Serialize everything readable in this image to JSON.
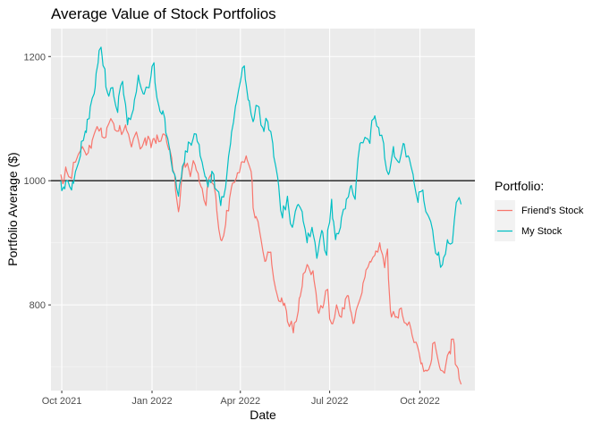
{
  "chart_data": {
    "type": "line",
    "title": "Average Value of Stock Portfolios",
    "xlabel": "Date",
    "ylabel": "Portfolio Average ($)",
    "x_start": "2021-09-30",
    "x_end": "2022-11-12",
    "xlim": [
      "2021-09-20",
      "2022-11-26"
    ],
    "ylim": [
      662,
      1245
    ],
    "x_ticks": [
      {
        "date": "2021-10-01",
        "label": "Oct 2021"
      },
      {
        "date": "2022-01-01",
        "label": "Jan 2022"
      },
      {
        "date": "2022-04-01",
        "label": "Apr 2022"
      },
      {
        "date": "2022-07-01",
        "label": "Jul 2022"
      },
      {
        "date": "2022-10-01",
        "label": "Oct 2022"
      }
    ],
    "y_ticks": [
      800,
      1000,
      1200
    ],
    "y_minor": [
      700,
      900,
      1100
    ],
    "hline": 1000,
    "grid": true,
    "legend": {
      "title": "Portfolio:",
      "position": "right"
    },
    "series": [
      {
        "name": "Friend's Stock",
        "color": "#F8766D",
        "anchors": [
          [
            "2021-09-30",
            1010
          ],
          [
            "2021-10-02",
            995
          ],
          [
            "2021-10-05",
            1022
          ],
          [
            "2021-10-10",
            1005
          ],
          [
            "2021-10-15",
            1030
          ],
          [
            "2021-10-22",
            1055
          ],
          [
            "2021-10-28",
            1045
          ],
          [
            "2021-11-03",
            1075
          ],
          [
            "2021-11-10",
            1085
          ],
          [
            "2021-11-15",
            1070
          ],
          [
            "2021-11-20",
            1100
          ],
          [
            "2021-11-28",
            1080
          ],
          [
            "2021-12-05",
            1090
          ],
          [
            "2021-12-10",
            1060
          ],
          [
            "2021-12-15",
            1075
          ],
          [
            "2021-12-22",
            1055
          ],
          [
            "2021-12-30",
            1065
          ],
          [
            "2022-01-05",
            1060
          ],
          [
            "2022-01-12",
            1075
          ],
          [
            "2022-01-18",
            1050
          ],
          [
            "2022-01-24",
            1010
          ],
          [
            "2022-01-28",
            950
          ],
          [
            "2022-02-03",
            1030
          ],
          [
            "2022-02-08",
            1015
          ],
          [
            "2022-02-14",
            1025
          ],
          [
            "2022-02-20",
            990
          ],
          [
            "2022-02-25",
            960
          ],
          [
            "2022-03-02",
            1010
          ],
          [
            "2022-03-07",
            975
          ],
          [
            "2022-03-12",
            905
          ],
          [
            "2022-03-17",
            930
          ],
          [
            "2022-03-23",
            990
          ],
          [
            "2022-03-28",
            1005
          ],
          [
            "2022-04-02",
            1030
          ],
          [
            "2022-04-07",
            1040
          ],
          [
            "2022-04-12",
            1015
          ],
          [
            "2022-04-16",
            940
          ],
          [
            "2022-04-21",
            915
          ],
          [
            "2022-04-26",
            870
          ],
          [
            "2022-05-02",
            885
          ],
          [
            "2022-05-07",
            825
          ],
          [
            "2022-05-12",
            805
          ],
          [
            "2022-05-18",
            790
          ],
          [
            "2022-05-25",
            755
          ],
          [
            "2022-05-30",
            790
          ],
          [
            "2022-06-03",
            830
          ],
          [
            "2022-06-08",
            865
          ],
          [
            "2022-06-14",
            855
          ],
          [
            "2022-06-19",
            790
          ],
          [
            "2022-06-24",
            795
          ],
          [
            "2022-06-29",
            825
          ],
          [
            "2022-07-03",
            770
          ],
          [
            "2022-07-08",
            800
          ],
          [
            "2022-07-13",
            780
          ],
          [
            "2022-07-19",
            815
          ],
          [
            "2022-07-25",
            770
          ],
          [
            "2022-07-31",
            805
          ],
          [
            "2022-08-06",
            845
          ],
          [
            "2022-08-11",
            870
          ],
          [
            "2022-08-16",
            880
          ],
          [
            "2022-08-21",
            900
          ],
          [
            "2022-08-26",
            860
          ],
          [
            "2022-08-29",
            890
          ],
          [
            "2022-09-01",
            790
          ],
          [
            "2022-09-06",
            780
          ],
          [
            "2022-09-12",
            795
          ],
          [
            "2022-09-17",
            770
          ],
          [
            "2022-09-22",
            760
          ],
          [
            "2022-09-27",
            740
          ],
          [
            "2022-10-02",
            705
          ],
          [
            "2022-10-07",
            695
          ],
          [
            "2022-10-12",
            705
          ],
          [
            "2022-10-16",
            740
          ],
          [
            "2022-10-21",
            700
          ],
          [
            "2022-10-26",
            690
          ],
          [
            "2022-10-31",
            725
          ],
          [
            "2022-11-04",
            745
          ],
          [
            "2022-11-08",
            700
          ],
          [
            "2022-11-12",
            672
          ]
        ]
      },
      {
        "name": "My Stock",
        "color": "#00BFC4",
        "anchors": [
          [
            "2021-09-30",
            1000
          ],
          [
            "2021-10-03",
            990
          ],
          [
            "2021-10-07",
            1000
          ],
          [
            "2021-10-11",
            985
          ],
          [
            "2021-10-15",
            1015
          ],
          [
            "2021-10-20",
            1040
          ],
          [
            "2021-10-25",
            1080
          ],
          [
            "2021-10-29",
            1100
          ],
          [
            "2021-11-03",
            1140
          ],
          [
            "2021-11-07",
            1190
          ],
          [
            "2021-11-10",
            1215
          ],
          [
            "2021-11-14",
            1180
          ],
          [
            "2021-11-17",
            1140
          ],
          [
            "2021-11-22",
            1150
          ],
          [
            "2021-11-27",
            1110
          ],
          [
            "2021-12-02",
            1160
          ],
          [
            "2021-12-07",
            1090
          ],
          [
            "2021-12-13",
            1115
          ],
          [
            "2021-12-18",
            1170
          ],
          [
            "2021-12-23",
            1140
          ],
          [
            "2021-12-28",
            1150
          ],
          [
            "2022-01-03",
            1190
          ],
          [
            "2022-01-08",
            1120
          ],
          [
            "2022-01-14",
            1100
          ],
          [
            "2022-01-19",
            1050
          ],
          [
            "2022-01-24",
            1010
          ],
          [
            "2022-01-28",
            975
          ],
          [
            "2022-02-03",
            1030
          ],
          [
            "2022-02-09",
            1060
          ],
          [
            "2022-02-15",
            1075
          ],
          [
            "2022-02-21",
            1030
          ],
          [
            "2022-02-27",
            990
          ],
          [
            "2022-03-05",
            1010
          ],
          [
            "2022-03-12",
            960
          ],
          [
            "2022-03-17",
            990
          ],
          [
            "2022-03-22",
            1060
          ],
          [
            "2022-03-27",
            1120
          ],
          [
            "2022-04-01",
            1160
          ],
          [
            "2022-04-05",
            1185
          ],
          [
            "2022-04-09",
            1130
          ],
          [
            "2022-04-14",
            1095
          ],
          [
            "2022-04-19",
            1120
          ],
          [
            "2022-04-24",
            1085
          ],
          [
            "2022-04-29",
            1095
          ],
          [
            "2022-05-04",
            1060
          ],
          [
            "2022-05-09",
            1005
          ],
          [
            "2022-05-14",
            940
          ],
          [
            "2022-05-19",
            975
          ],
          [
            "2022-05-24",
            925
          ],
          [
            "2022-05-29",
            960
          ],
          [
            "2022-06-03",
            950
          ],
          [
            "2022-06-08",
            900
          ],
          [
            "2022-06-13",
            925
          ],
          [
            "2022-06-18",
            875
          ],
          [
            "2022-06-23",
            920
          ],
          [
            "2022-06-28",
            880
          ],
          [
            "2022-07-03",
            970
          ],
          [
            "2022-07-07",
            905
          ],
          [
            "2022-07-12",
            925
          ],
          [
            "2022-07-17",
            955
          ],
          [
            "2022-07-22",
            990
          ],
          [
            "2022-07-27",
            970
          ],
          [
            "2022-08-01",
            1060
          ],
          [
            "2022-08-06",
            1070
          ],
          [
            "2022-08-11",
            1060
          ],
          [
            "2022-08-15",
            1100
          ],
          [
            "2022-08-20",
            1085
          ],
          [
            "2022-08-25",
            1060
          ],
          [
            "2022-08-30",
            1010
          ],
          [
            "2022-09-04",
            1055
          ],
          [
            "2022-09-09",
            1030
          ],
          [
            "2022-09-14",
            1060
          ],
          [
            "2022-09-19",
            1040
          ],
          [
            "2022-09-24",
            1010
          ],
          [
            "2022-09-29",
            965
          ],
          [
            "2022-10-04",
            985
          ],
          [
            "2022-10-09",
            945
          ],
          [
            "2022-10-14",
            920
          ],
          [
            "2022-10-19",
            880
          ],
          [
            "2022-10-24",
            865
          ],
          [
            "2022-10-29",
            905
          ],
          [
            "2022-11-03",
            900
          ],
          [
            "2022-11-07",
            965
          ],
          [
            "2022-11-12",
            962
          ]
        ]
      }
    ]
  }
}
